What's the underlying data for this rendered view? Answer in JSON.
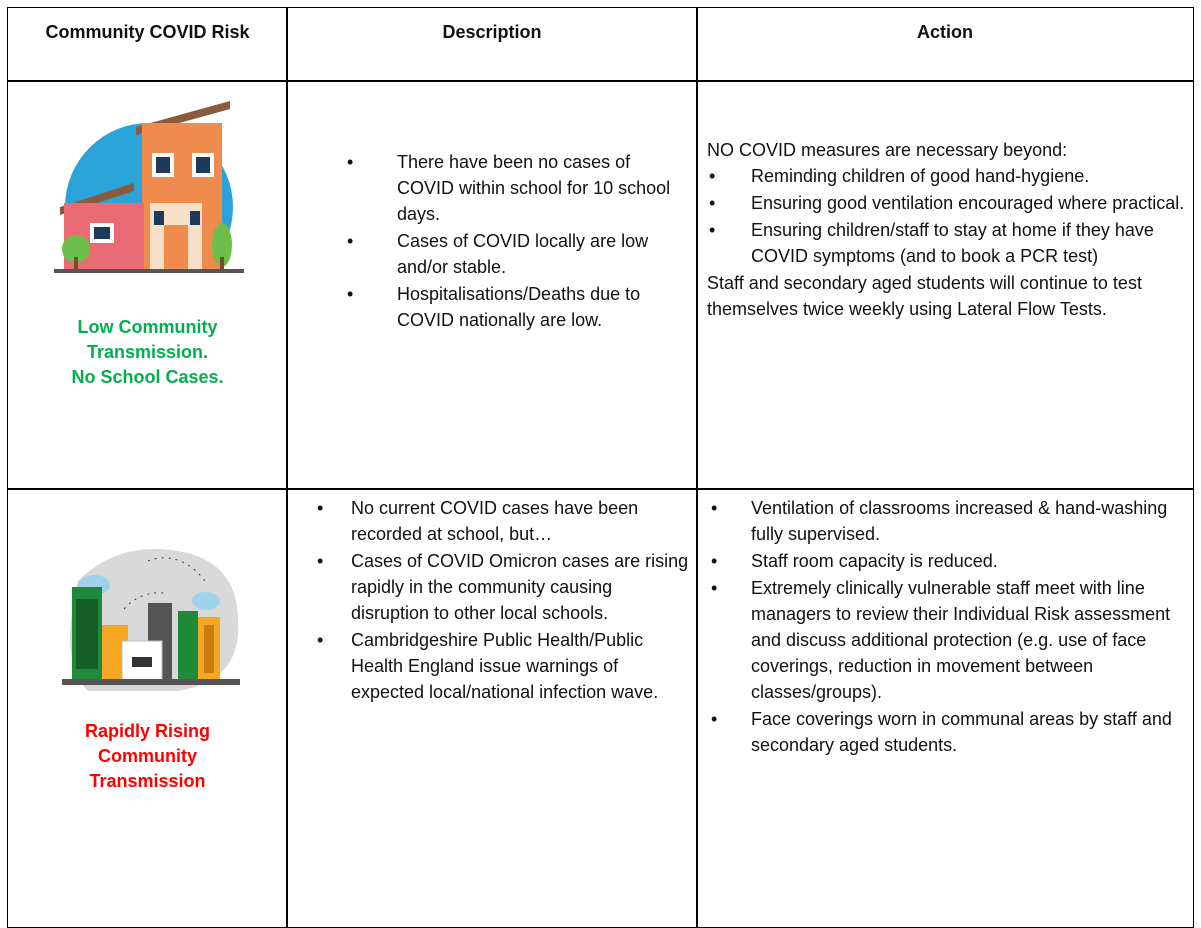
{
  "table": {
    "header": [
      "Community COVID Risk",
      "Description",
      "Action"
    ],
    "rows": [
      {
        "risk_label": [
          "Low Community",
          "Transmission.",
          "No School Cases."
        ],
        "description": [
          "There have been no cases of COVID within school for 10 school days.",
          "Cases of COVID locally are low and/or stable.",
          "Hospitalisations/Deaths due to COVID nationally are low."
        ],
        "action_intro": "NO COVID measures are necessary beyond:",
        "action": [
          "Reminding children of good hand-hygiene.",
          "Ensuring good ventilation encouraged where practical.",
          "Ensuring children/staff to stay at home if they have COVID symptoms (and to book a PCR test)"
        ],
        "action_outro": "Staff and secondary aged students will continue to test themselves twice weekly using Lateral Flow Tests."
      },
      {
        "risk_label": [
          "Rapidly Rising",
          "Community",
          "Transmission"
        ],
        "description": [
          "No current COVID cases have been recorded at school, but…",
          "Cases of COVID Omicron cases are rising rapidly in the community causing disruption to other local schools.",
          "Cambridgeshire Public Health/Public Health England issue warnings of expected local/national infection wave."
        ],
        "action": [
          "Ventilation of classrooms increased & hand-washing fully supervised.",
          "Staff room capacity is reduced.",
          "Extremely clinically vulnerable staff meet with line managers to review their Individual Risk assessment and discuss additional protection (e.g. use of face coverings, reduction in movement between classes/groups).",
          "Face coverings worn in communal areas by staff and secondary aged students."
        ]
      }
    ]
  }
}
